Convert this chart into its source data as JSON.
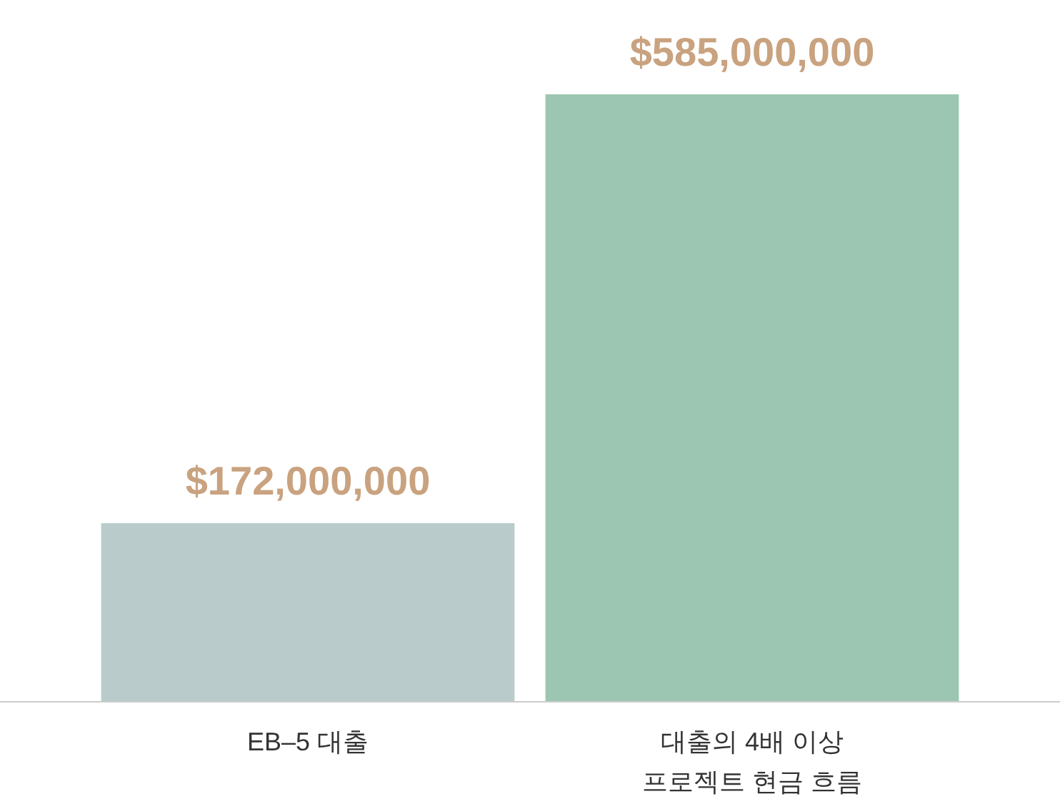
{
  "chart_data": {
    "type": "bar",
    "categories": [
      "EB–5 대출",
      "대출의 4배 이상\n프로젝트 현금 흐름"
    ],
    "values": [
      172000000,
      585000000
    ],
    "colors": [
      "#b9cccb",
      "#9cc6b1"
    ],
    "value_labels": [
      "$172,000,000",
      "$585,000,000"
    ]
  }
}
